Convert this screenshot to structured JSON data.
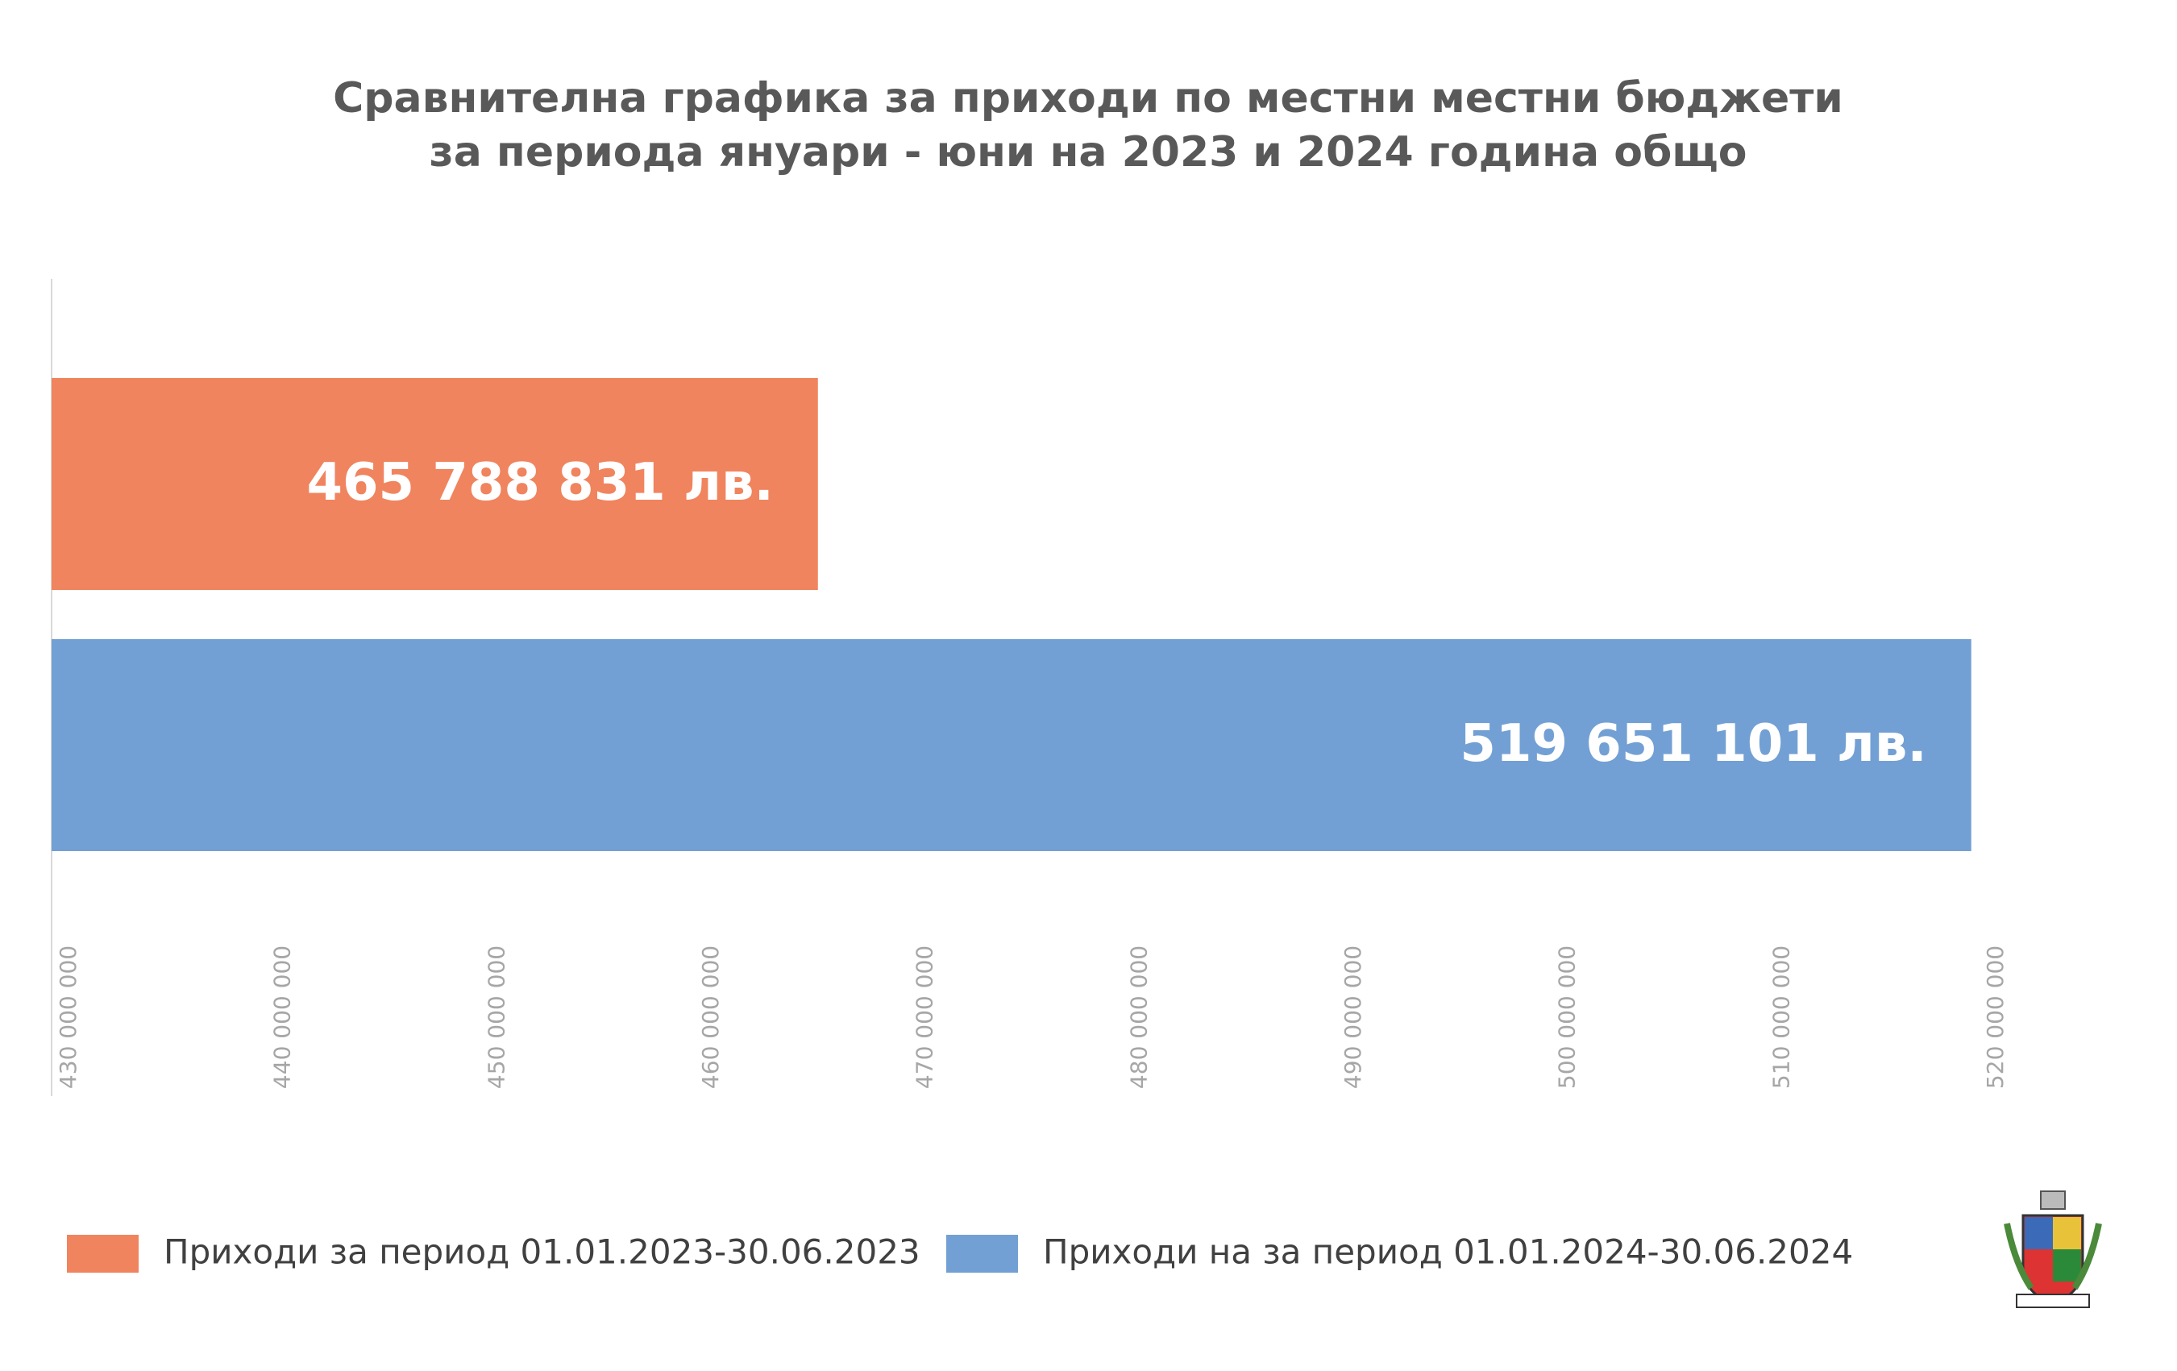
{
  "chart_data": {
    "type": "bar",
    "orientation": "horizontal",
    "title": [
      "Сравнителна графика за приходи по местни местни бюджети",
      "за периода януари - юни на 2023 и 2024 година общо"
    ],
    "categories": [
      null
    ],
    "series": [
      {
        "name": "Приходи за период 01.01.2023-30.06.2023",
        "color": "#f0845e",
        "values": [
          465788831
        ],
        "value_labels": [
          "465 788 831 лв."
        ]
      },
      {
        "name": "Приходи на за период 01.01.2024-30.06.2024",
        "color": "#72a0d4",
        "values": [
          519651101
        ],
        "value_labels": [
          "519 651 101 лв."
        ]
      }
    ],
    "xlim": [
      430000000,
      520000000
    ],
    "xticks": [
      {
        "value": 430000000,
        "label": "430 000 000"
      },
      {
        "value": 440000000,
        "label": "440 000 000"
      },
      {
        "value": 450000000,
        "label": "450 000 000"
      },
      {
        "value": 460000000,
        "label": "460 000 000"
      },
      {
        "value": 470000000,
        "label": "470 000 000"
      },
      {
        "value": 480000000,
        "label": "480 000 000"
      },
      {
        "value": 490000000,
        "label": "490 000 000"
      },
      {
        "value": 500000000,
        "label": "500 000 000"
      },
      {
        "value": 510000000,
        "label": "510 000 000"
      },
      {
        "value": 520000000,
        "label": "520 000 000"
      }
    ],
    "grid": false,
    "legend": "bottom"
  }
}
